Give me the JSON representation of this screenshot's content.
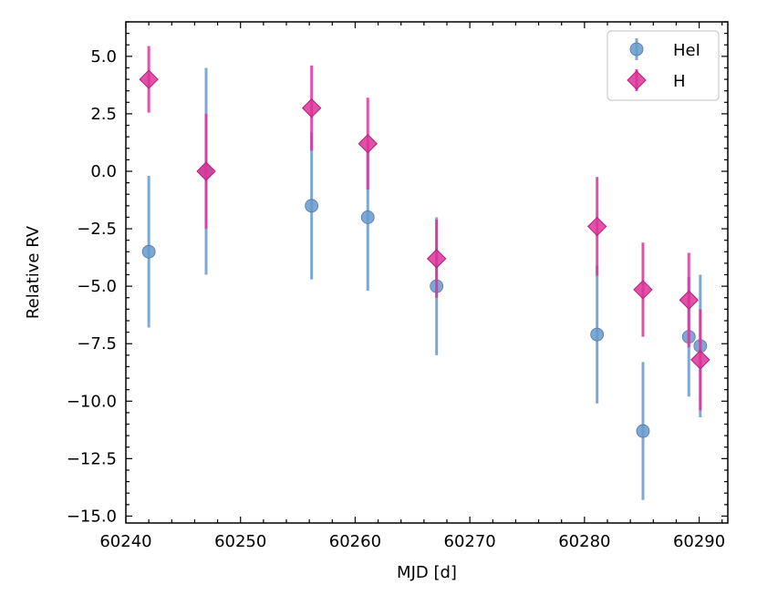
{
  "chart_data": {
    "type": "scatter",
    "xlabel": "MJD [d]",
    "ylabel": "Relative RV",
    "xlim": [
      60240,
      60292.5
    ],
    "ylim": [
      -15.3,
      6.5
    ],
    "xticks": [
      60240,
      60250,
      60260,
      60270,
      60280,
      60290
    ],
    "xtick_labels": [
      "60240",
      "60250",
      "60260",
      "60270",
      "60280",
      "60290"
    ],
    "yticks": [
      5.0,
      2.5,
      0.0,
      -2.5,
      -5.0,
      -7.5,
      -10.0,
      -12.5,
      -15.0
    ],
    "ytick_labels": [
      "5.0",
      "2.5",
      "0.0",
      "−2.5",
      "−5.0",
      "−7.5",
      "−10.0",
      "−12.5",
      "−15.0"
    ],
    "legend_position": "top-right",
    "series": [
      {
        "name": "HeI",
        "marker": "circle",
        "color": "#6699cc",
        "points": [
          {
            "x": 60242.0,
            "y": -3.5,
            "err": 3.3
          },
          {
            "x": 60247.0,
            "y": 0.0,
            "err": 4.5
          },
          {
            "x": 60256.2,
            "y": -1.5,
            "err": 3.2
          },
          {
            "x": 60261.1,
            "y": -2.0,
            "err": 3.2
          },
          {
            "x": 60267.1,
            "y": -5.0,
            "err": 3.0
          },
          {
            "x": 60281.1,
            "y": -7.1,
            "err": 3.0
          },
          {
            "x": 60285.1,
            "y": -11.3,
            "err": 3.0
          },
          {
            "x": 60289.1,
            "y": -7.2,
            "err": 2.6
          },
          {
            "x": 60290.1,
            "y": -7.6,
            "err": 3.1
          }
        ]
      },
      {
        "name": "H",
        "marker": "diamond",
        "color": "#dd3399",
        "points": [
          {
            "x": 60242.0,
            "y": 4.0,
            "err": 1.45
          },
          {
            "x": 60247.0,
            "y": 0.0,
            "err": 2.5
          },
          {
            "x": 60256.2,
            "y": 2.75,
            "err": 1.85
          },
          {
            "x": 60261.1,
            "y": 1.2,
            "err": 2.0
          },
          {
            "x": 60267.1,
            "y": -3.8,
            "err": 1.7
          },
          {
            "x": 60281.1,
            "y": -2.4,
            "err": 2.15
          },
          {
            "x": 60285.1,
            "y": -5.15,
            "err": 2.05
          },
          {
            "x": 60289.1,
            "y": -5.6,
            "err": 2.05
          },
          {
            "x": 60290.1,
            "y": -8.2,
            "err": 2.2
          }
        ]
      }
    ]
  }
}
